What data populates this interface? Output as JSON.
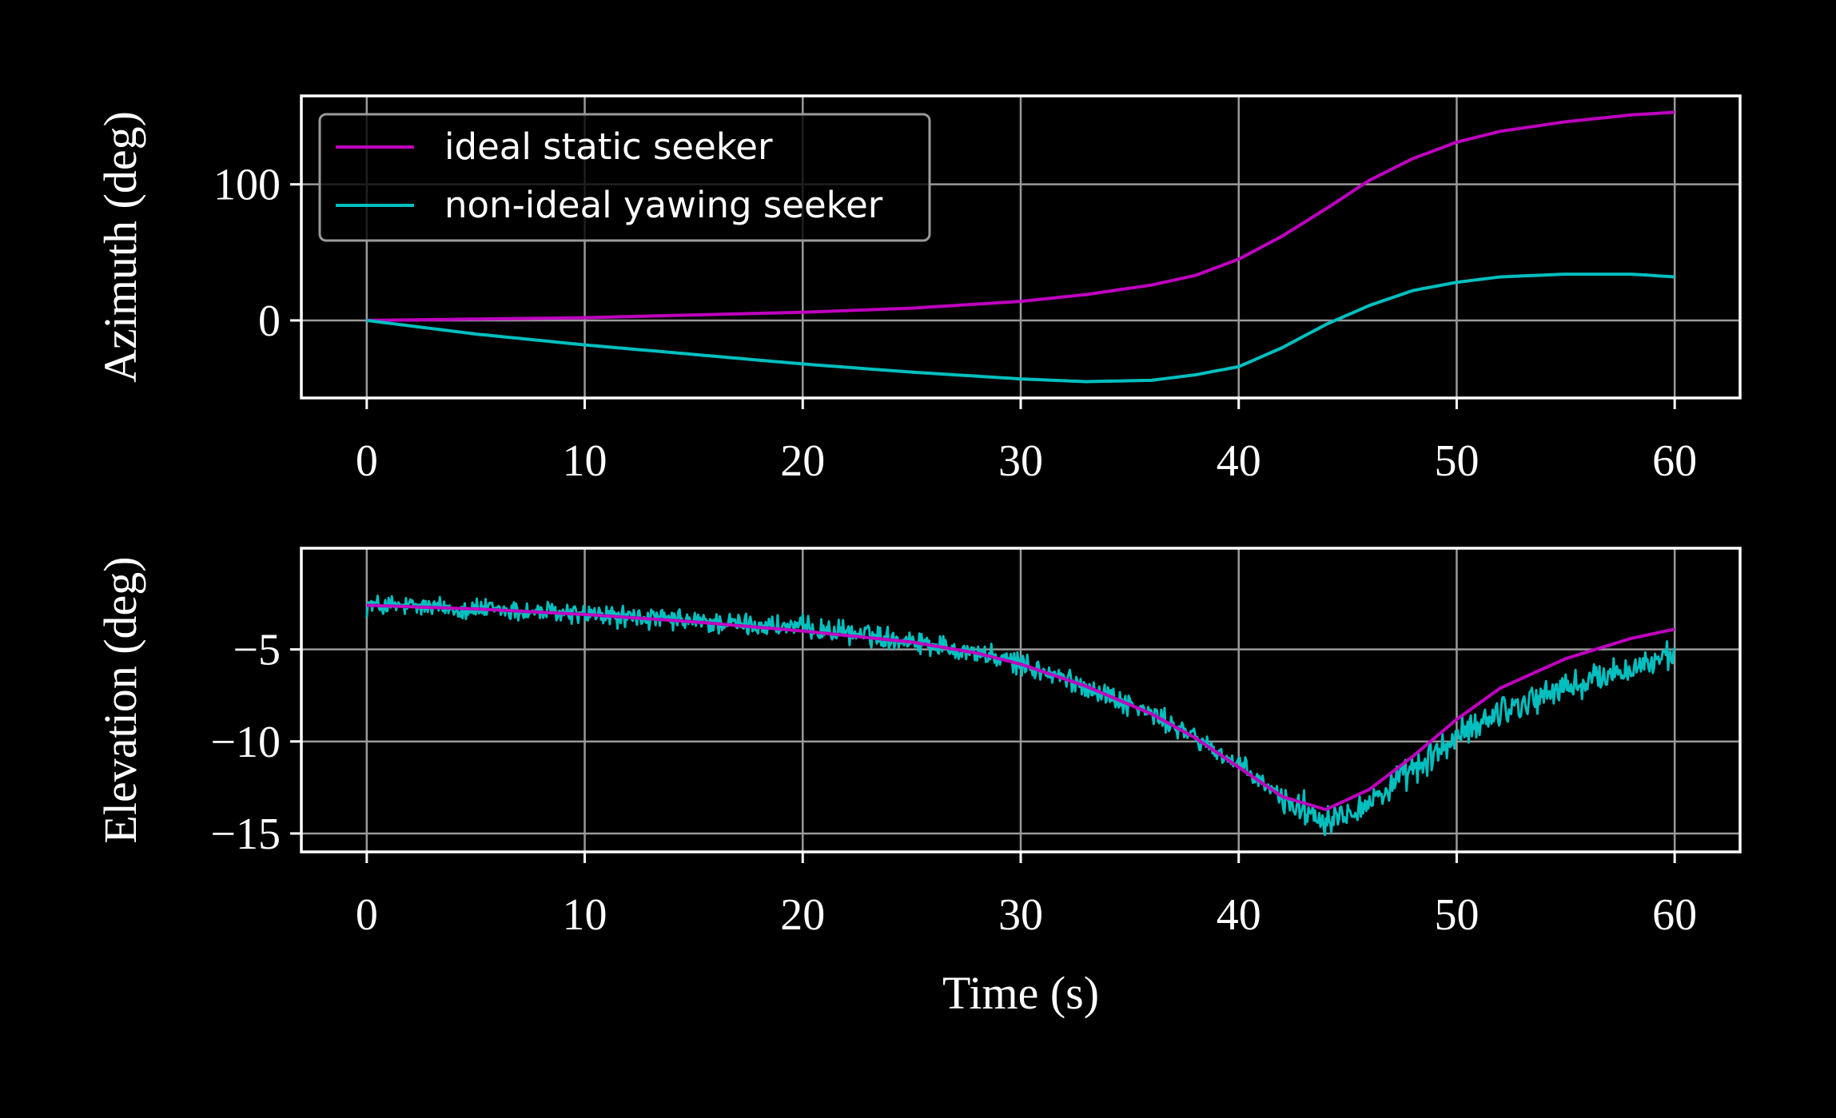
{
  "chart_data": [
    {
      "type": "line",
      "ylabel": "Azimuth (deg)",
      "xlabel": "",
      "xlim": [
        -3,
        63
      ],
      "ylim": [
        -57,
        165
      ],
      "xticks": [
        0,
        10,
        20,
        30,
        40,
        50,
        60
      ],
      "xtick_labels": [
        "0",
        "10",
        "20",
        "30",
        "40",
        "50",
        "60"
      ],
      "yticks": [
        0,
        100
      ],
      "ytick_labels": [
        "0",
        "100"
      ],
      "grid": true,
      "legend_position": "upper-left",
      "series": [
        {
          "name": "ideal static seeker",
          "color": "#bf00bf",
          "x": [
            0,
            5,
            10,
            15,
            20,
            25,
            30,
            33,
            36,
            38,
            40,
            42,
            44,
            46,
            48,
            50,
            52,
            55,
            58,
            60
          ],
          "y": [
            0,
            1,
            2,
            4,
            6,
            9,
            14,
            19,
            26,
            33,
            45,
            62,
            82,
            103,
            119,
            131,
            139,
            146,
            151,
            153
          ]
        },
        {
          "name": "non-ideal yawing seeker",
          "color": "#00bfbf",
          "x": [
            0,
            5,
            10,
            15,
            20,
            25,
            30,
            33,
            36,
            38,
            40,
            42,
            44,
            46,
            48,
            50,
            52,
            55,
            58,
            60
          ],
          "y": [
            0,
            -10,
            -18,
            -25,
            -32,
            -38,
            -43,
            -45,
            -44,
            -40,
            -34,
            -20,
            -3,
            11,
            22,
            28,
            32,
            34,
            34,
            32
          ]
        }
      ]
    },
    {
      "type": "line",
      "ylabel": "Elevation (deg)",
      "xlabel": "Time (s)",
      "xlim": [
        -3,
        63
      ],
      "ylim": [
        -16,
        0.5
      ],
      "xticks": [
        0,
        10,
        20,
        30,
        40,
        50,
        60
      ],
      "xtick_labels": [
        "0",
        "10",
        "20",
        "30",
        "40",
        "50",
        "60"
      ],
      "yticks": [
        -5,
        -10,
        -15
      ],
      "ytick_labels": [
        "−5",
        "−10",
        "−15"
      ],
      "grid": true,
      "series": [
        {
          "color": "#00bfbf",
          "noisy": true,
          "x": [
            0,
            5,
            10,
            15,
            20,
            25,
            28,
            30,
            33,
            36,
            38,
            40,
            42,
            44,
            46,
            48,
            50,
            52,
            55,
            58,
            60
          ],
          "y": [
            -2.6,
            -2.8,
            -3.1,
            -3.5,
            -3.8,
            -4.5,
            -5.2,
            -5.8,
            -7.0,
            -8.5,
            -9.8,
            -11.3,
            -13.1,
            -14.2,
            -13.3,
            -11.6,
            -9.8,
            -8.3,
            -7.1,
            -6.0,
            -5.4
          ]
        },
        {
          "color": "#bf00bf",
          "x": [
            0,
            5,
            10,
            15,
            20,
            25,
            28,
            30,
            33,
            36,
            38,
            40,
            42,
            44,
            46,
            48,
            50,
            52,
            55,
            58,
            60
          ],
          "y": [
            -2.6,
            -2.8,
            -3.1,
            -3.5,
            -4.0,
            -4.6,
            -5.2,
            -5.8,
            -7.0,
            -8.5,
            -9.8,
            -11.4,
            -13.0,
            -13.7,
            -12.6,
            -10.8,
            -8.8,
            -7.1,
            -5.5,
            -4.4,
            -3.9
          ]
        }
      ]
    }
  ]
}
